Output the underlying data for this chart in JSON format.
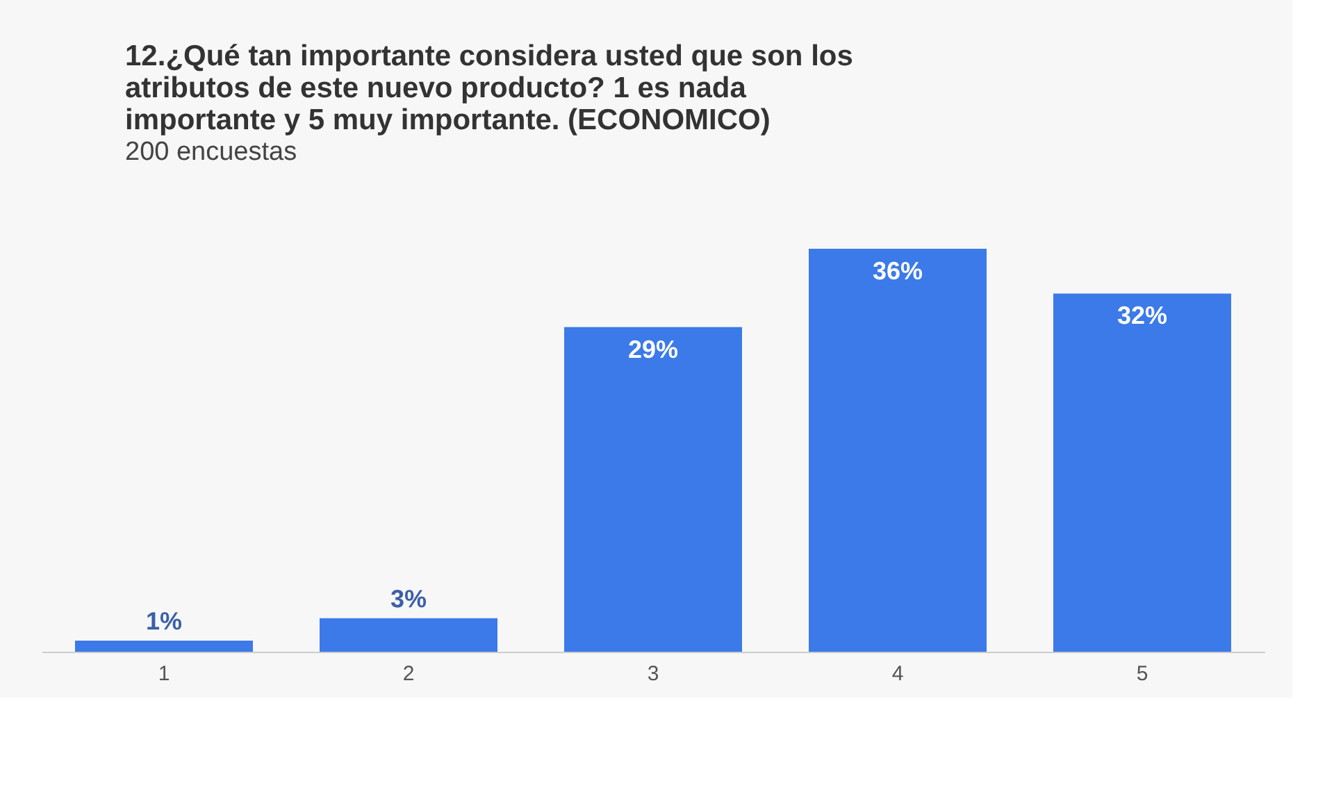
{
  "chart_data": {
    "type": "bar",
    "title": [
      "12.¿Qué tan importante considera usted que son los",
      "atributos de este nuevo producto? 1 es nada",
      "importante y 5 muy  importante. (ECONOMICO)"
    ],
    "subtitle": "200 encuestas",
    "categories": [
      "1",
      "2",
      "3",
      "4",
      "5"
    ],
    "values": [
      1,
      3,
      29,
      36,
      32
    ],
    "value_labels": [
      "1%",
      "3%",
      "29%",
      "36%",
      "32%"
    ],
    "color": "#3b7ae8",
    "grid": false
  }
}
